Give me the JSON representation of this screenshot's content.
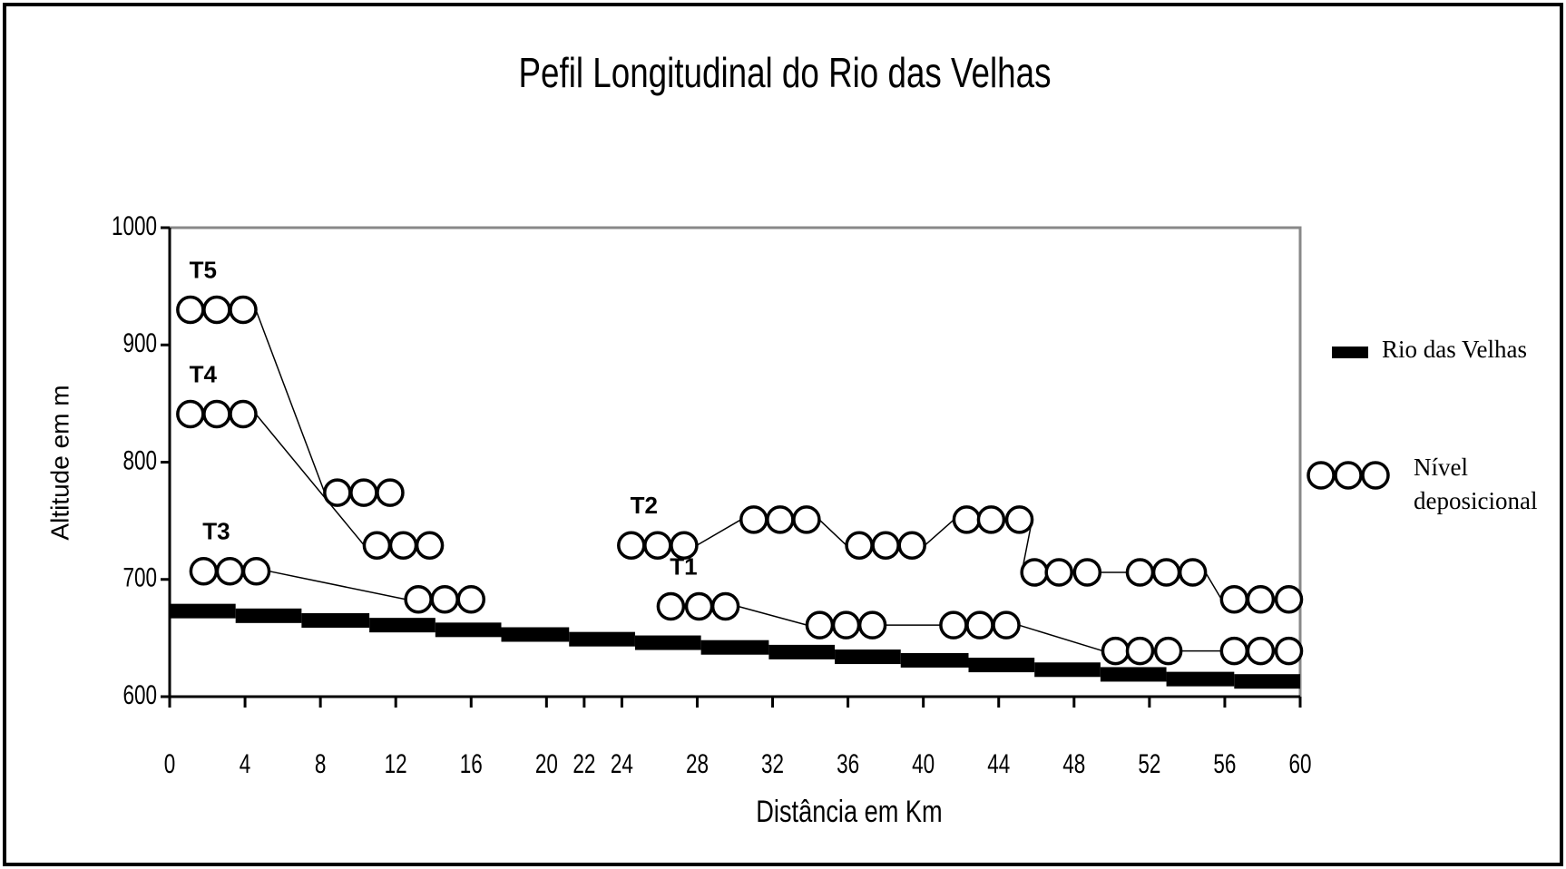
{
  "chart_data": {
    "type": "line",
    "title": "Pefil Longitudinal do Rio das Velhas",
    "x_label": "Distância em Km",
    "y_label": "Altitude em m",
    "xlim": [
      0,
      60
    ],
    "xticks": [
      0,
      4,
      8,
      12,
      16,
      20,
      22,
      24,
      28,
      32,
      36,
      40,
      44,
      48,
      52,
      56,
      60
    ],
    "ylim": [
      600,
      1000
    ],
    "yticks": [
      600,
      700,
      800,
      900,
      1000
    ],
    "grid": false,
    "legend": "right",
    "series": [
      {
        "name": "Rio das Velhas",
        "color": "#000000",
        "style": "step",
        "x": [
          0,
          3.5,
          7,
          10.6,
          14.1,
          17.6,
          21.2,
          24.7,
          28.2,
          31.8,
          35.3,
          38.8,
          42.4,
          45.9,
          49.4,
          52.9,
          56.5
        ],
        "values": [
          673,
          669,
          665,
          661,
          657,
          653,
          649,
          646,
          642,
          638,
          634,
          631,
          627,
          623,
          619,
          615,
          613
        ]
      },
      {
        "name": "Nível deposicional",
        "color": "#000000",
        "style": "circles",
        "terraces": [
          {
            "label": "T5",
            "x": [
              1.1,
              2.5,
              3.9,
              8.9,
              10.3,
              11.7
            ],
            "values": [
              930,
              930,
              930,
              774,
              774,
              774
            ]
          },
          {
            "label": "T4",
            "x": [
              1.1,
              2.5,
              3.9,
              11.0,
              12.4,
              13.8
            ],
            "values": [
              841,
              841,
              841,
              729,
              729,
              729
            ]
          },
          {
            "label": "T3",
            "x": [
              1.8,
              3.2,
              4.6,
              13.2,
              14.6,
              16.0
            ],
            "values": [
              707,
              707,
              707,
              683,
              683,
              683
            ]
          },
          {
            "label": "T2",
            "x": [
              24.5,
              25.9,
              27.3,
              31.0,
              32.4,
              33.8,
              36.6,
              38.0,
              39.4,
              42.3,
              43.6,
              45.1,
              45.9,
              47.2,
              48.7,
              51.5,
              52.9,
              54.3,
              56.5,
              57.9,
              59.4
            ],
            "values": [
              729,
              729,
              729,
              751,
              751,
              751,
              729,
              729,
              729,
              751,
              751,
              751,
              706,
              706,
              706,
              706,
              706,
              706,
              683,
              683,
              683
            ]
          },
          {
            "label": "T1",
            "x": [
              26.6,
              28.1,
              29.5,
              34.5,
              35.9,
              37.3,
              41.6,
              43.0,
              44.4,
              50.2,
              51.5,
              53.0,
              56.5,
              57.9,
              59.4
            ],
            "values": [
              677,
              677,
              677,
              661,
              661,
              661,
              661,
              661,
              661,
              639,
              639,
              639,
              639,
              639,
              639
            ]
          }
        ]
      }
    ]
  }
}
